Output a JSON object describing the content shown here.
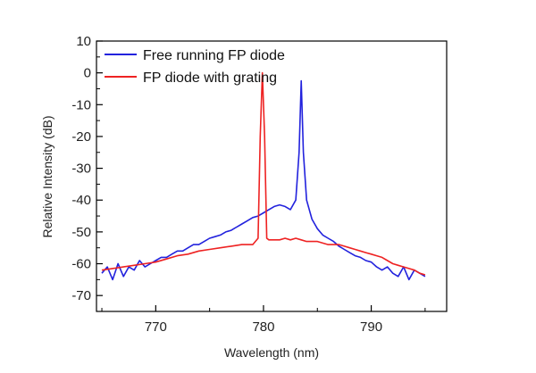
{
  "chart_data": {
    "type": "line",
    "title": "",
    "xlabel": "Wavelength (nm)",
    "ylabel": "Relative Intensity (dB)",
    "xlim": [
      764.5,
      797
    ],
    "ylim": [
      -75,
      10
    ],
    "x_ticks": [
      770,
      780,
      790
    ],
    "y_ticks": [
      10,
      0,
      -10,
      -20,
      -30,
      -40,
      -50,
      -60,
      -70
    ],
    "x_tick_labels": [
      "770",
      "780",
      "790"
    ],
    "y_tick_labels": [
      "10",
      "0",
      "-10",
      "-20",
      "-30",
      "-40",
      "-50",
      "-60",
      "-70"
    ],
    "grid": false,
    "legend_position": "top-left",
    "series": [
      {
        "name": "Free running FP diode",
        "color": "#2222dd",
        "x": [
          765,
          765.5,
          766,
          766.5,
          767,
          767.5,
          768,
          768.5,
          769,
          769.5,
          770,
          770.5,
          771,
          771.5,
          772,
          772.5,
          773,
          773.5,
          774,
          774.5,
          775,
          775.5,
          776,
          776.5,
          777,
          777.5,
          778,
          778.5,
          779,
          779.5,
          780,
          780.5,
          781,
          781.5,
          782,
          782.5,
          783,
          783.3,
          783.5,
          783.7,
          784,
          784.5,
          785,
          785.5,
          786,
          786.5,
          787,
          787.5,
          788,
          788.5,
          789,
          789.5,
          790,
          790.5,
          791,
          791.5,
          792,
          792.5,
          793,
          793.5,
          794,
          794.5,
          795
        ],
        "y": [
          -63,
          -61,
          -65,
          -60,
          -64,
          -61,
          -62,
          -59,
          -61,
          -60,
          -59,
          -58,
          -58,
          -57,
          -56,
          -56,
          -55,
          -54,
          -54,
          -53,
          -52,
          -51.5,
          -51,
          -50,
          -49.5,
          -48.5,
          -47.5,
          -46.5,
          -45.5,
          -45,
          -44,
          -43,
          -42,
          -41.5,
          -42,
          -43,
          -40,
          -25,
          -2.5,
          -25,
          -40,
          -46,
          -49,
          -51,
          -52,
          -53,
          -54.5,
          -55.5,
          -56.5,
          -57.5,
          -58,
          -59,
          -59.5,
          -61,
          -62,
          -61,
          -63,
          -64,
          -61,
          -65,
          -62,
          -63,
          -64
        ]
      },
      {
        "name": "FP diode with grating",
        "color": "#ee2222",
        "x": [
          765,
          766,
          767,
          768,
          769,
          770,
          771,
          772,
          773,
          774,
          775,
          776,
          777,
          778,
          779,
          779.5,
          779.7,
          779.9,
          780.1,
          780.3,
          780.5,
          781,
          781.5,
          782,
          782.5,
          783,
          783.5,
          784,
          784.5,
          785,
          785.5,
          786,
          786.5,
          787,
          787.5,
          788,
          788.5,
          789,
          789.5,
          790,
          790.5,
          791,
          791.5,
          792,
          792.5,
          793,
          793.5,
          794,
          794.5,
          795
        ],
        "y": [
          -62,
          -61.5,
          -61,
          -60.5,
          -60,
          -59.5,
          -58.5,
          -57.5,
          -57,
          -56,
          -55.5,
          -55,
          -54.5,
          -54,
          -54,
          -52,
          -20,
          0,
          -20,
          -52,
          -52.5,
          -52.5,
          -52.5,
          -52,
          -52.5,
          -52,
          -52.5,
          -53,
          -53,
          -53,
          -53.5,
          -54,
          -54,
          -54,
          -54.5,
          -55,
          -55.5,
          -56,
          -56.5,
          -57,
          -57.5,
          -58,
          -59,
          -60,
          -60.5,
          -61,
          -61.5,
          -62,
          -63,
          -63.5
        ]
      }
    ]
  }
}
